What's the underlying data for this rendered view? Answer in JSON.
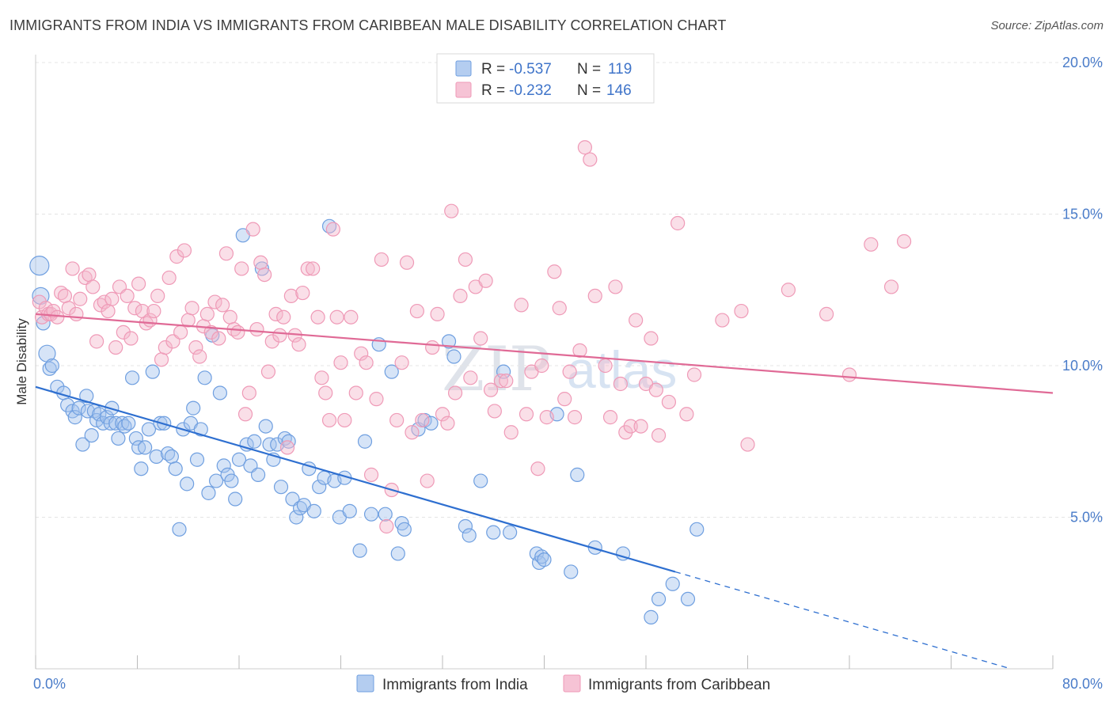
{
  "chart_data": {
    "type": "scatter",
    "title": "IMMIGRANTS FROM INDIA VS IMMIGRANTS FROM CARIBBEAN MALE DISABILITY CORRELATION CHART",
    "source": "Source: ZipAtlas.com",
    "watermark": [
      "ZIP",
      "atlas"
    ],
    "ylabel": "Male Disability",
    "xlim": [
      0,
      80
    ],
    "ylim": [
      0,
      20
    ],
    "x_tick_labels": [
      "0.0%",
      "80.0%"
    ],
    "y_ticks": [
      {
        "value": 5,
        "label": "5.0%"
      },
      {
        "value": 10,
        "label": "10.0%"
      },
      {
        "value": 15,
        "label": "15.0%"
      },
      {
        "value": 20,
        "label": "20.0%"
      }
    ],
    "grid": "horizontal dashed",
    "legend_position": "top-center",
    "legend": [
      {
        "r_label": "R =",
        "r_value": "-0.537",
        "n_label": "N =",
        "n_value": "119"
      },
      {
        "r_label": "R =",
        "r_value": "-0.232",
        "n_label": "N =",
        "n_value": "146"
      }
    ],
    "series": [
      {
        "name": "Immigrants from India",
        "color": "#6f9fe0",
        "line_color": "#2e6fd0",
        "trend": {
          "x0": 0,
          "y0": 9.3,
          "x1": 50.3,
          "y1": 3.2,
          "dashed_to_x": 80,
          "dashed_to_y": -0.4
        },
        "points": [
          [
            0.3,
            13.3
          ],
          [
            0.4,
            12.3
          ],
          [
            0.6,
            11.4
          ],
          [
            0.9,
            10.4
          ],
          [
            1.1,
            9.9
          ],
          [
            1.3,
            10.0
          ],
          [
            1.7,
            9.3
          ],
          [
            2.2,
            9.1
          ],
          [
            2.5,
            8.7
          ],
          [
            2.9,
            8.5
          ],
          [
            3.1,
            8.3
          ],
          [
            3.4,
            8.6
          ],
          [
            3.7,
            7.4
          ],
          [
            4.0,
            9.0
          ],
          [
            4.1,
            8.5
          ],
          [
            4.4,
            7.7
          ],
          [
            4.6,
            8.5
          ],
          [
            4.8,
            8.2
          ],
          [
            5.0,
            8.4
          ],
          [
            5.3,
            8.1
          ],
          [
            5.6,
            8.3
          ],
          [
            5.9,
            8.1
          ],
          [
            6.0,
            8.6
          ],
          [
            6.3,
            8.1
          ],
          [
            6.5,
            7.6
          ],
          [
            6.8,
            8.1
          ],
          [
            7.0,
            8.0
          ],
          [
            7.3,
            8.1
          ],
          [
            7.6,
            9.6
          ],
          [
            7.9,
            7.6
          ],
          [
            8.1,
            7.3
          ],
          [
            8.3,
            6.6
          ],
          [
            8.6,
            7.3
          ],
          [
            8.9,
            7.9
          ],
          [
            9.2,
            9.8
          ],
          [
            9.5,
            7.0
          ],
          [
            9.8,
            8.1
          ],
          [
            10.1,
            8.1
          ],
          [
            10.4,
            7.1
          ],
          [
            10.7,
            7.0
          ],
          [
            11.0,
            6.6
          ],
          [
            11.3,
            4.6
          ],
          [
            11.6,
            7.9
          ],
          [
            11.9,
            6.1
          ],
          [
            12.2,
            8.1
          ],
          [
            12.4,
            8.6
          ],
          [
            12.7,
            6.9
          ],
          [
            13.0,
            7.9
          ],
          [
            13.3,
            9.6
          ],
          [
            13.6,
            5.8
          ],
          [
            13.9,
            11.0
          ],
          [
            14.2,
            6.2
          ],
          [
            14.5,
            9.1
          ],
          [
            14.8,
            6.7
          ],
          [
            15.1,
            6.4
          ],
          [
            15.4,
            6.2
          ],
          [
            15.7,
            5.6
          ],
          [
            16.0,
            6.9
          ],
          [
            16.3,
            14.3
          ],
          [
            16.6,
            7.4
          ],
          [
            16.9,
            6.7
          ],
          [
            17.2,
            7.5
          ],
          [
            17.5,
            6.4
          ],
          [
            17.8,
            13.2
          ],
          [
            18.1,
            8.0
          ],
          [
            18.4,
            7.4
          ],
          [
            18.7,
            6.9
          ],
          [
            19.0,
            7.4
          ],
          [
            19.3,
            6.0
          ],
          [
            19.6,
            7.6
          ],
          [
            19.9,
            7.5
          ],
          [
            20.2,
            5.6
          ],
          [
            20.5,
            5.0
          ],
          [
            20.8,
            5.3
          ],
          [
            21.1,
            5.4
          ],
          [
            21.5,
            6.6
          ],
          [
            21.9,
            5.2
          ],
          [
            22.3,
            6.0
          ],
          [
            22.7,
            6.3
          ],
          [
            23.1,
            14.6
          ],
          [
            23.5,
            6.2
          ],
          [
            23.9,
            5.0
          ],
          [
            24.3,
            6.3
          ],
          [
            24.7,
            5.2
          ],
          [
            25.5,
            3.9
          ],
          [
            25.9,
            7.5
          ],
          [
            26.4,
            5.1
          ],
          [
            27.0,
            10.7
          ],
          [
            27.5,
            5.1
          ],
          [
            28.0,
            9.8
          ],
          [
            28.5,
            3.8
          ],
          [
            28.8,
            4.8
          ],
          [
            29.0,
            4.6
          ],
          [
            30.1,
            7.9
          ],
          [
            30.6,
            8.2
          ],
          [
            31.1,
            8.1
          ],
          [
            32.5,
            10.8
          ],
          [
            32.9,
            10.3
          ],
          [
            33.8,
            4.7
          ],
          [
            34.1,
            4.4
          ],
          [
            35.0,
            6.2
          ],
          [
            36.0,
            4.5
          ],
          [
            36.8,
            9.8
          ],
          [
            37.3,
            4.5
          ],
          [
            39.4,
            3.8
          ],
          [
            39.6,
            3.5
          ],
          [
            39.8,
            3.7
          ],
          [
            40.0,
            3.6
          ],
          [
            41.0,
            8.4
          ],
          [
            42.1,
            3.2
          ],
          [
            42.6,
            6.4
          ],
          [
            44.0,
            4.0
          ],
          [
            46.2,
            3.8
          ],
          [
            48.4,
            1.7
          ],
          [
            49.0,
            2.3
          ],
          [
            50.1,
            2.8
          ],
          [
            51.3,
            2.3
          ],
          [
            52.0,
            4.6
          ]
        ]
      },
      {
        "name": "Immigrants from Caribbean",
        "color": "#ef9ab7",
        "line_color": "#e06a96",
        "trend": {
          "x0": 0,
          "y0": 11.7,
          "x1": 80,
          "y1": 9.1
        },
        "points": [
          [
            0.3,
            12.1
          ],
          [
            0.5,
            11.6
          ],
          [
            0.8,
            11.9
          ],
          [
            1.0,
            11.7
          ],
          [
            1.2,
            11.7
          ],
          [
            1.4,
            11.8
          ],
          [
            1.7,
            11.6
          ],
          [
            2.0,
            12.4
          ],
          [
            2.3,
            12.3
          ],
          [
            2.6,
            11.9
          ],
          [
            2.9,
            13.2
          ],
          [
            3.2,
            11.7
          ],
          [
            3.5,
            12.2
          ],
          [
            3.9,
            12.9
          ],
          [
            4.2,
            13.0
          ],
          [
            4.5,
            12.6
          ],
          [
            4.8,
            10.8
          ],
          [
            5.1,
            12.0
          ],
          [
            5.4,
            12.1
          ],
          [
            5.7,
            11.8
          ],
          [
            6.0,
            12.2
          ],
          [
            6.3,
            10.6
          ],
          [
            6.6,
            12.6
          ],
          [
            6.9,
            11.1
          ],
          [
            7.2,
            12.3
          ],
          [
            7.5,
            10.9
          ],
          [
            7.8,
            11.9
          ],
          [
            8.1,
            12.7
          ],
          [
            8.4,
            11.8
          ],
          [
            8.7,
            11.4
          ],
          [
            9.0,
            11.5
          ],
          [
            9.3,
            11.8
          ],
          [
            9.6,
            12.3
          ],
          [
            9.9,
            10.2
          ],
          [
            10.2,
            10.6
          ],
          [
            10.5,
            12.9
          ],
          [
            10.8,
            10.8
          ],
          [
            11.1,
            13.6
          ],
          [
            11.4,
            11.1
          ],
          [
            11.7,
            13.8
          ],
          [
            12.0,
            11.5
          ],
          [
            12.3,
            11.9
          ],
          [
            12.6,
            10.6
          ],
          [
            12.9,
            10.3
          ],
          [
            13.2,
            11.3
          ],
          [
            13.5,
            11.7
          ],
          [
            13.8,
            11.1
          ],
          [
            14.1,
            12.1
          ],
          [
            14.4,
            10.9
          ],
          [
            14.7,
            12.0
          ],
          [
            15.0,
            13.7
          ],
          [
            15.3,
            11.6
          ],
          [
            15.6,
            11.2
          ],
          [
            15.9,
            11.1
          ],
          [
            16.2,
            13.2
          ],
          [
            16.5,
            8.4
          ],
          [
            16.8,
            9.1
          ],
          [
            17.1,
            14.5
          ],
          [
            17.4,
            11.2
          ],
          [
            17.7,
            13.4
          ],
          [
            18.0,
            13.0
          ],
          [
            18.3,
            9.8
          ],
          [
            18.6,
            10.8
          ],
          [
            18.9,
            11.7
          ],
          [
            19.2,
            11.0
          ],
          [
            19.5,
            11.6
          ],
          [
            19.8,
            7.3
          ],
          [
            20.1,
            12.3
          ],
          [
            20.4,
            11.0
          ],
          [
            20.7,
            10.7
          ],
          [
            21.0,
            12.4
          ],
          [
            21.4,
            13.2
          ],
          [
            21.8,
            13.2
          ],
          [
            22.2,
            11.6
          ],
          [
            22.5,
            9.6
          ],
          [
            22.8,
            9.1
          ],
          [
            23.1,
            8.2
          ],
          [
            23.4,
            14.5
          ],
          [
            23.7,
            11.6
          ],
          [
            24.0,
            10.1
          ],
          [
            24.3,
            8.2
          ],
          [
            24.8,
            11.6
          ],
          [
            25.2,
            9.1
          ],
          [
            25.6,
            10.4
          ],
          [
            26.0,
            10.1
          ],
          [
            26.4,
            6.4
          ],
          [
            26.8,
            8.9
          ],
          [
            27.2,
            13.5
          ],
          [
            27.6,
            4.7
          ],
          [
            28.0,
            5.9
          ],
          [
            28.4,
            8.2
          ],
          [
            28.8,
            10.1
          ],
          [
            29.2,
            13.4
          ],
          [
            29.6,
            7.8
          ],
          [
            30.0,
            11.8
          ],
          [
            30.4,
            8.2
          ],
          [
            30.8,
            6.2
          ],
          [
            31.2,
            10.6
          ],
          [
            31.6,
            11.7
          ],
          [
            32.0,
            8.4
          ],
          [
            32.4,
            8.1
          ],
          [
            32.7,
            15.1
          ],
          [
            33.0,
            9.1
          ],
          [
            33.4,
            12.3
          ],
          [
            33.8,
            13.5
          ],
          [
            34.2,
            9.6
          ],
          [
            34.6,
            12.6
          ],
          [
            35.0,
            10.9
          ],
          [
            35.4,
            12.8
          ],
          [
            35.8,
            9.2
          ],
          [
            36.1,
            8.5
          ],
          [
            36.6,
            9.5
          ],
          [
            37.0,
            9.5
          ],
          [
            37.4,
            7.8
          ],
          [
            38.2,
            12.0
          ],
          [
            38.6,
            8.4
          ],
          [
            39.0,
            9.8
          ],
          [
            39.5,
            6.6
          ],
          [
            39.8,
            10.0
          ],
          [
            40.2,
            8.3
          ],
          [
            40.8,
            13.1
          ],
          [
            41.2,
            11.9
          ],
          [
            41.6,
            8.9
          ],
          [
            42.0,
            9.8
          ],
          [
            42.4,
            8.3
          ],
          [
            42.8,
            10.5
          ],
          [
            43.2,
            17.2
          ],
          [
            43.6,
            16.8
          ],
          [
            44.0,
            12.3
          ],
          [
            44.8,
            10.0
          ],
          [
            45.2,
            8.3
          ],
          [
            45.6,
            12.6
          ],
          [
            46.0,
            9.4
          ],
          [
            46.4,
            7.8
          ],
          [
            46.8,
            8.0
          ],
          [
            47.2,
            11.5
          ],
          [
            47.6,
            8.0
          ],
          [
            48.0,
            9.4
          ],
          [
            48.4,
            10.9
          ],
          [
            48.8,
            9.2
          ],
          [
            49.0,
            7.7
          ],
          [
            49.8,
            8.8
          ],
          [
            50.5,
            14.7
          ],
          [
            51.2,
            8.4
          ],
          [
            51.8,
            9.7
          ],
          [
            54.0,
            11.5
          ],
          [
            55.5,
            11.8
          ],
          [
            56.0,
            7.4
          ],
          [
            59.2,
            12.5
          ],
          [
            62.2,
            11.7
          ],
          [
            64.0,
            9.7
          ],
          [
            65.7,
            14.0
          ],
          [
            67.3,
            12.6
          ],
          [
            68.3,
            14.1
          ]
        ]
      }
    ]
  }
}
